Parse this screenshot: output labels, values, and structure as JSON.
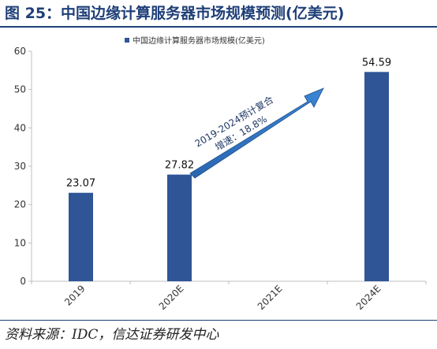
{
  "figure": {
    "title": "图 25：中国边缘计算服务器市场规模预测(亿美元)",
    "source": "资料来源：IDC，信达证券研发中心"
  },
  "chart_data": {
    "type": "bar",
    "categories": [
      "2019",
      "2020E",
      "2021E",
      "2024E"
    ],
    "series": [
      {
        "name": "中国边缘计算服务器市场规模(亿美元)",
        "values": [
          23.07,
          27.82,
          null,
          54.59
        ],
        "labels": [
          "23.07",
          "27.82",
          "",
          "54.59"
        ]
      }
    ],
    "ylim": [
      0,
      60
    ],
    "yticks": [
      "0",
      "10",
      "20",
      "30",
      "40",
      "50",
      "60"
    ],
    "ytick_values": [
      0,
      10,
      20,
      30,
      40,
      50,
      60
    ],
    "grid": false,
    "legend_position": "top-center",
    "annotation": {
      "line1": "2019-2024预计复合",
      "line2": "增速：18.8%"
    },
    "colors": {
      "bar": "#2f5597",
      "arrow": "#2e75b6",
      "axis": "#bfbfbf",
      "text": "#333333"
    }
  }
}
